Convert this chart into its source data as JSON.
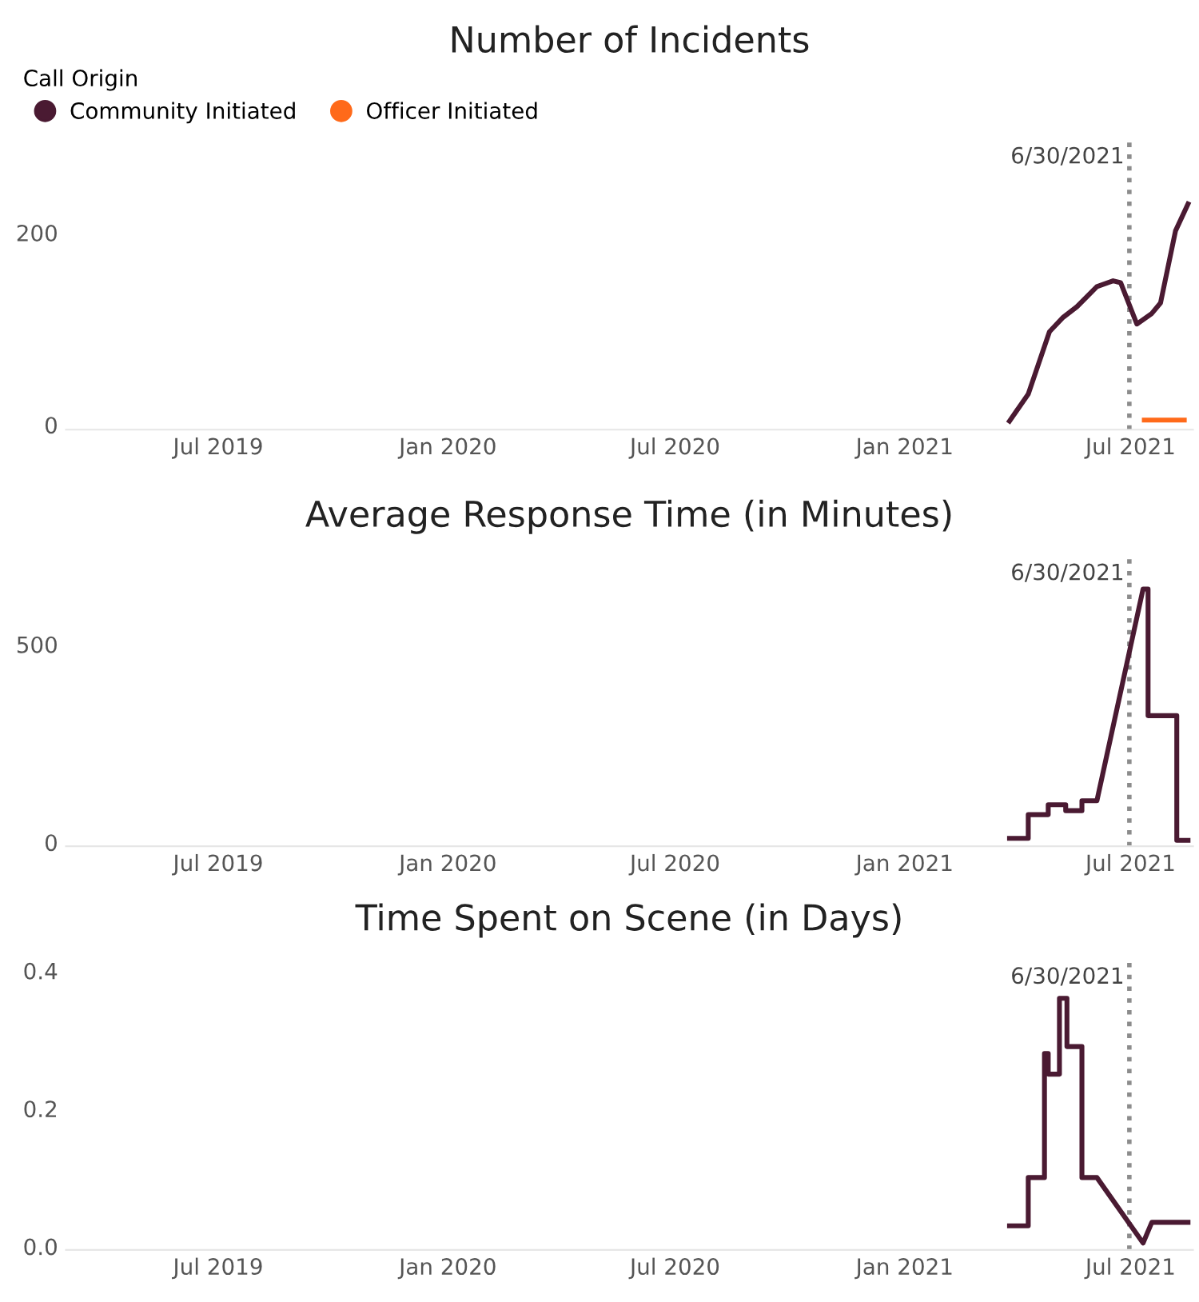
{
  "chart_data": [
    {
      "type": "line",
      "title": "Number of Incidents",
      "legend_title": "Call Origin",
      "legend": "top left",
      "grid": false,
      "xlim": [
        "2019-03-01",
        "2021-08-20"
      ],
      "xticks": [
        {
          "value": "2019-07-01",
          "label": "Jul 2019"
        },
        {
          "value": "2020-01-01",
          "label": "Jan 2020"
        },
        {
          "value": "2020-07-01",
          "label": "Jul 2020"
        },
        {
          "value": "2021-01-01",
          "label": "Jan 2021"
        },
        {
          "value": "2021-07-01",
          "label": "Jul 2021"
        }
      ],
      "ylim": [
        -5,
        300
      ],
      "yticks": [
        0,
        200
      ],
      "ref_lines": [
        {
          "axis": "x",
          "value": "2021-06-30",
          "label": "6/30/2021",
          "color": "#8c8c8c",
          "line_style": "dotted"
        }
      ],
      "series": [
        {
          "name": "Community Initiated",
          "color": "#4a1a32",
          "x": [
            "2021-03-26",
            "2021-04-10",
            "2021-04-27",
            "2021-05-08",
            "2021-05-19",
            "2021-06-04",
            "2021-06-17",
            "2021-06-23",
            "2021-07-06",
            "2021-07-18",
            "2021-07-25",
            "2021-08-06",
            "2021-08-16"
          ],
          "values": [
            4,
            32,
            97,
            112,
            123,
            144,
            150,
            148,
            105,
            116,
            127,
            202,
            230
          ]
        },
        {
          "name": "Officer Initiated",
          "color": "#ff6a1a",
          "x": [
            "2021-07-12",
            "2021-08-13"
          ],
          "values": [
            5,
            5
          ]
        }
      ]
    },
    {
      "type": "line",
      "title": "Average Response Time (in Minutes)",
      "grid": false,
      "xlim": [
        "2019-03-01",
        "2021-08-20"
      ],
      "xticks": [
        {
          "value": "2019-07-01",
          "label": "Jul 2019"
        },
        {
          "value": "2020-01-01",
          "label": "Jan 2020"
        },
        {
          "value": "2020-07-01",
          "label": "Jul 2020"
        },
        {
          "value": "2021-01-01",
          "label": "Jan 2021"
        },
        {
          "value": "2021-07-01",
          "label": "Jul 2021"
        }
      ],
      "ylim": [
        -10,
        730
      ],
      "yticks": [
        0,
        500
      ],
      "ref_lines": [
        {
          "axis": "x",
          "value": "2021-06-30",
          "label": "6/30/2021",
          "color": "#8c8c8c",
          "line_style": "dotted"
        }
      ],
      "series": [
        {
          "color": "#4a1a32",
          "x": [
            "2021-03-26",
            "2021-04-10",
            "2021-04-10",
            "2021-04-26",
            "2021-04-26",
            "2021-05-10",
            "2021-05-10",
            "2021-05-23",
            "2021-05-23",
            "2021-06-04",
            "2021-07-11",
            "2021-07-15",
            "2021-07-15",
            "2021-08-07",
            "2021-08-07",
            "2021-08-16"
          ],
          "values": [
            10,
            10,
            70,
            70,
            95,
            95,
            80,
            80,
            105,
            105,
            640,
            640,
            320,
            320,
            5,
            5
          ]
        }
      ]
    },
    {
      "type": "line",
      "title": "Time Spent on Scene (in Days)",
      "grid": false,
      "xlim": [
        "2019-03-01",
        "2021-08-20"
      ],
      "xticks": [
        {
          "value": "2019-07-01",
          "label": "Jul 2019"
        },
        {
          "value": "2020-01-01",
          "label": "Jan 2020"
        },
        {
          "value": "2020-07-01",
          "label": "Jul 2020"
        },
        {
          "value": "2021-01-01",
          "label": "Jan 2021"
        },
        {
          "value": "2021-07-01",
          "label": "Jul 2021"
        }
      ],
      "ylim": [
        -0.005,
        0.42
      ],
      "yticks": [
        {
          "value": 0,
          "label": "0.0"
        },
        {
          "value": 0.2,
          "label": "0.2"
        },
        {
          "value": 0.4,
          "label": "0.4"
        }
      ],
      "ref_lines": [
        {
          "axis": "x",
          "value": "2021-06-30",
          "label": "6/30/2021",
          "color": "#8c8c8c",
          "line_style": "dotted"
        }
      ],
      "series": [
        {
          "color": "#4a1a32",
          "x": [
            "2021-03-26",
            "2021-04-10",
            "2021-04-10",
            "2021-04-23",
            "2021-04-23",
            "2021-04-26",
            "2021-04-26",
            "2021-05-05",
            "2021-05-05",
            "2021-05-11",
            "2021-05-11",
            "2021-05-23",
            "2021-05-23",
            "2021-06-04",
            "2021-07-11",
            "2021-07-18",
            "2021-08-16"
          ],
          "values": [
            0.03,
            0.03,
            0.1,
            0.1,
            0.28,
            0.28,
            0.25,
            0.25,
            0.36,
            0.36,
            0.29,
            0.29,
            0.1,
            0.1,
            0.005,
            0.035,
            0.035
          ]
        }
      ]
    }
  ]
}
